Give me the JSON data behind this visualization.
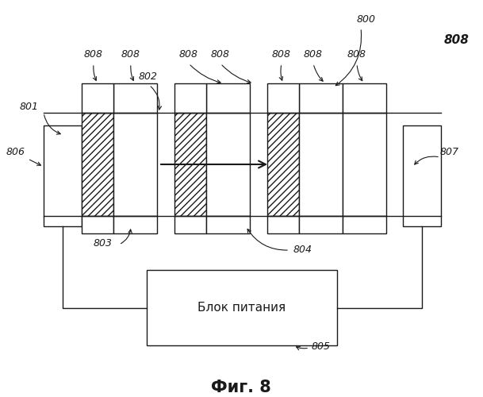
{
  "bg_color": "#ffffff",
  "fig_label": "Фиг. 8",
  "fig_label_fontsize": 15,
  "black": "#1a1a1a"
}
